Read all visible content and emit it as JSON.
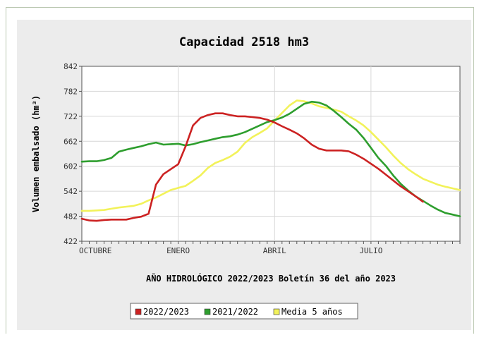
{
  "chart_data": {
    "type": "line",
    "title": "Capacidad 2518 hm3",
    "xlabel": "AÑO HIDROLÓGICO 2022/2023 Boletín 36 del año 2023",
    "ylabel": "Volumen embalsado (hm³)",
    "ylim": [
      422,
      842
    ],
    "yticks": [
      "842",
      "782",
      "722",
      "662",
      "602",
      "542",
      "482",
      "422"
    ],
    "yticks_values": [
      842,
      782,
      722,
      662,
      602,
      542,
      482,
      422
    ],
    "xticks": [
      {
        "label": "OCTUBRE",
        "week": 0
      },
      {
        "label": "ENERO",
        "week": 13
      },
      {
        "label": "ABRIL",
        "week": 26
      },
      {
        "label": "JULIO",
        "week": 39
      }
    ],
    "xlim": [
      0,
      51
    ],
    "grid": true,
    "legend_position": "bottom",
    "series": [
      {
        "name": "2022/2023",
        "color": "#cc2222",
        "x": [
          0,
          1,
          2,
          3,
          4,
          5,
          6,
          7,
          8,
          9,
          10,
          11,
          12,
          13,
          14,
          15,
          16,
          17,
          18,
          19,
          20,
          21,
          22,
          23,
          24,
          25,
          26,
          27,
          28,
          29,
          30,
          31,
          32,
          33,
          34,
          35,
          36,
          37,
          38,
          39,
          40,
          41,
          42,
          43,
          44,
          45,
          46
        ],
        "values": [
          476,
          472,
          471,
          473,
          474,
          474,
          474,
          478,
          481,
          488,
          558,
          583,
          595,
          607,
          650,
          700,
          718,
          725,
          729,
          729,
          725,
          722,
          722,
          720,
          718,
          714,
          707,
          698,
          690,
          681,
          669,
          654,
          644,
          640,
          640,
          640,
          638,
          630,
          620,
          608,
          596,
          582,
          568,
          554,
          542,
          530,
          517
        ]
      },
      {
        "name": "2021/2022",
        "color": "#2e9e2e",
        "x": [
          0,
          1,
          2,
          3,
          4,
          5,
          6,
          7,
          8,
          9,
          10,
          11,
          12,
          13,
          14,
          15,
          16,
          17,
          18,
          19,
          20,
          21,
          22,
          23,
          24,
          25,
          26,
          27,
          28,
          29,
          30,
          31,
          32,
          33,
          34,
          35,
          36,
          37,
          38,
          39,
          40,
          41,
          42,
          43,
          44,
          45,
          46,
          47,
          48,
          49,
          50,
          51
        ],
        "values": [
          613,
          614,
          614,
          617,
          622,
          637,
          642,
          646,
          650,
          655,
          659,
          654,
          655,
          656,
          652,
          655,
          660,
          664,
          668,
          672,
          674,
          678,
          684,
          692,
          700,
          708,
          713,
          719,
          728,
          740,
          752,
          757,
          755,
          748,
          735,
          720,
          704,
          690,
          670,
          646,
          622,
          603,
          580,
          560,
          544,
          530,
          519,
          508,
          498,
          490,
          486,
          482
        ]
      },
      {
        "name": "Media 5 años",
        "color": "#f2f25a",
        "x": [
          0,
          1,
          2,
          3,
          4,
          5,
          6,
          7,
          8,
          9,
          10,
          11,
          12,
          13,
          14,
          15,
          16,
          17,
          18,
          19,
          20,
          21,
          22,
          23,
          24,
          25,
          26,
          27,
          28,
          29,
          30,
          31,
          32,
          33,
          34,
          35,
          36,
          37,
          38,
          39,
          40,
          41,
          42,
          43,
          44,
          45,
          46,
          47,
          48,
          49,
          50,
          51
        ],
        "values": [
          495,
          495,
          496,
          497,
          500,
          503,
          505,
          507,
          512,
          520,
          527,
          536,
          545,
          550,
          555,
          567,
          580,
          598,
          610,
          617,
          625,
          637,
          658,
          672,
          682,
          693,
          712,
          730,
          748,
          760,
          758,
          753,
          746,
          742,
          738,
          733,
          722,
          712,
          700,
          684,
          666,
          648,
          628,
          610,
          595,
          583,
          572,
          565,
          558,
          553,
          549,
          545
        ]
      }
    ]
  }
}
